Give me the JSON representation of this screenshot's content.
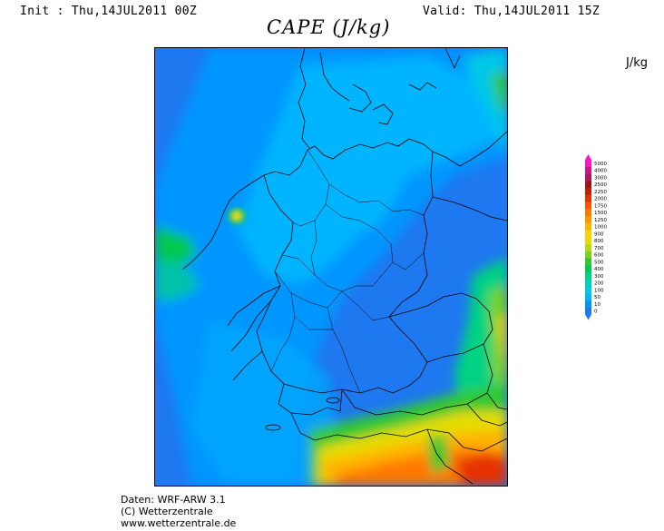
{
  "header": {
    "init_text": "Init : Thu,14JUL2011 00Z",
    "valid_text": "Valid: Thu,14JUL2011 15Z",
    "title": "CAPE (J/kg)",
    "units": "J/kg"
  },
  "legend": {
    "levels": [
      "0",
      "10",
      "50",
      "100",
      "200",
      "300",
      "400",
      "500",
      "600",
      "700",
      "800",
      "900",
      "1000",
      "1250",
      "1500",
      "1750",
      "2000",
      "2250",
      "2500",
      "3000",
      "4000",
      "5000"
    ],
    "colors": [
      "#1e78ff",
      "#0096ff",
      "#00b4ff",
      "#00c8e6",
      "#00d2b4",
      "#00d282",
      "#00c850",
      "#32c832",
      "#78d21e",
      "#b4dc14",
      "#e6dc00",
      "#ffd200",
      "#ffb400",
      "#ff9600",
      "#ff7800",
      "#ff5000",
      "#e63200",
      "#c81e00",
      "#a01414",
      "#b4145a",
      "#d2148c",
      "#ff14c8"
    ]
  },
  "credits": {
    "line1": "Daten: WRF-ARW 3.1",
    "line2": "(C) Wetterzentrale",
    "line3": "www.wetterzentrale.de"
  }
}
